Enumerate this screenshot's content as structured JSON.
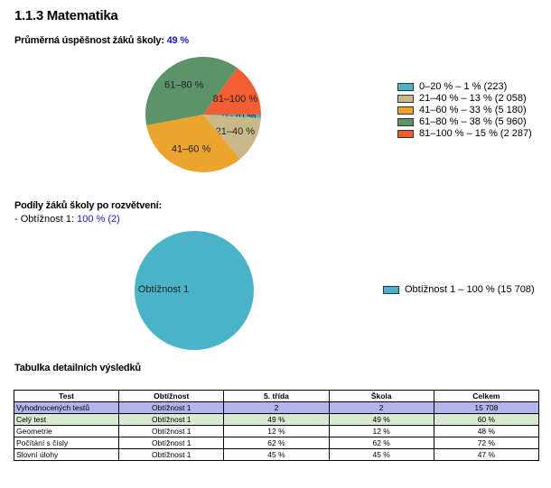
{
  "heading": "1.1.3 Matematika",
  "success": {
    "label": "Průměrná úspěšnost žáků školy:",
    "value": "49 %"
  },
  "chart_data": [
    {
      "type": "pie",
      "slices": [
        {
          "label": "0–20 %",
          "percent": 1,
          "count": 223,
          "color": "#4bb3c7",
          "legend": "0–20 % – 1 % (223)"
        },
        {
          "label": "21–40 %",
          "percent": 13,
          "count": 2058,
          "color": "#c8b88a",
          "legend": "21–40 % – 13 % (2 058)"
        },
        {
          "label": "41–60 %",
          "percent": 33,
          "count": 5180,
          "color": "#eba52f",
          "legend": "41–60 % – 33 % (5 180)"
        },
        {
          "label": "61–80 %",
          "percent": 38,
          "count": 5960,
          "color": "#5c936a",
          "legend": "61–80 % – 38 % (5 960)"
        },
        {
          "label": "81–100 %",
          "percent": 15,
          "count": 2287,
          "color": "#f25e33",
          "legend": "81–100 % – 15 % (2 287)"
        }
      ]
    },
    {
      "type": "pie",
      "slices": [
        {
          "label": "Obtížnost 1",
          "percent": 100,
          "count": 15708,
          "color": "#4bb3c7",
          "legend": "Obtížnost 1 – 100 % (15 708)"
        }
      ]
    }
  ],
  "branch": {
    "title": "Podíly žáků školy po rozvětvení:",
    "item_prefix": "- Obtížnost 1:",
    "item_value": "100 % (2)"
  },
  "table": {
    "title": "Tabulka detailních výsledků",
    "headers": [
      "Test",
      "Obtížnost",
      "5. třída",
      "Škola",
      "Celkem"
    ],
    "rows": [
      [
        "Vyhodnocených testů",
        "Obtížnost 1",
        "2",
        "2",
        "15 708"
      ],
      [
        "Celý test",
        "Obtížnost 1",
        "49 %",
        "49 %",
        "60 %"
      ],
      [
        "Geometrie",
        "Obtížnost 1",
        "12 %",
        "12 %",
        "48 %"
      ],
      [
        "Počítání s čísly",
        "Obtížnost 1",
        "62 %",
        "62 %",
        "72 %"
      ],
      [
        "Slovní úlohy",
        "Obtížnost 1",
        "45 %",
        "45 %",
        "47 %"
      ]
    ]
  }
}
